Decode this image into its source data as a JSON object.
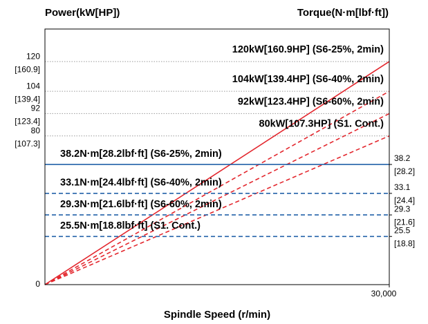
{
  "chart_data": {
    "type": "line",
    "title_left": "Power(kW[HP])",
    "title_right": "Torque(N·m[lbf·ft])",
    "x_label": "Spindle Speed (r/min)",
    "xlim": [
      0,
      30000
    ],
    "xticks": [
      {
        "value": 30000,
        "label": "30,000"
      }
    ],
    "ylim": [
      0,
      137.5
    ],
    "yticks": [
      0,
      80,
      92,
      104,
      120
    ],
    "yticks_hp": [
      null,
      "[107.3]",
      "[123.4]",
      "[139.4]",
      "[160.9]"
    ],
    "y2lim": [
      17,
      62.1
    ],
    "y2ticks": [
      38.2,
      33.1,
      29.3,
      25.5
    ],
    "y2ticks_lbf": [
      "[28.2]",
      "[24.4]",
      "[21.6]",
      "[18.8]"
    ],
    "grid": true,
    "series": [
      {
        "name": "120kW[160.9HP] (S6-25%, 2min)",
        "color": "#e3262d",
        "style": "solid",
        "x": [
          0,
          30000
        ],
        "values": [
          0,
          120
        ]
      },
      {
        "name": "104kW[139.4HP] (S6-40%, 2min)",
        "color": "#e3262d",
        "style": "dashed",
        "x": [
          0,
          30000
        ],
        "values": [
          0,
          104
        ]
      },
      {
        "name": "92kW[123.4HP] (S6-60%, 2min)",
        "color": "#e3262d",
        "style": "dashed",
        "x": [
          0,
          30000
        ],
        "values": [
          0,
          92
        ]
      },
      {
        "name": "80kW[107.3HP] (S1. Cont.)",
        "color": "#e3262d",
        "style": "dashed",
        "x": [
          0,
          30000
        ],
        "values": [
          0,
          80
        ]
      },
      {
        "name": "38.2N·m[28.2lbf·ft] (S6-25%, 2min)",
        "color": "#2160a8",
        "style": "solid",
        "axis": "y2",
        "x": [
          0,
          30000
        ],
        "values": [
          38.2,
          38.2
        ]
      },
      {
        "name": "33.1N·m[24.4lbf·ft] (S6-40%, 2min)",
        "color": "#2160a8",
        "style": "dashed",
        "axis": "y2",
        "x": [
          0,
          30000
        ],
        "values": [
          33.1,
          33.1
        ]
      },
      {
        "name": "29.3N·m[21.6lbf·ft] (S6-60%, 2min)",
        "color": "#2160a8",
        "style": "dashed",
        "axis": "y2",
        "x": [
          0,
          30000
        ],
        "values": [
          29.3,
          29.3
        ]
      },
      {
        "name": "25.5N·m[18.8lbf·ft] (S1. Cont.)",
        "color": "#2160a8",
        "style": "dashed",
        "axis": "y2",
        "x": [
          0,
          30000
        ],
        "values": [
          25.5,
          25.5
        ]
      }
    ]
  }
}
